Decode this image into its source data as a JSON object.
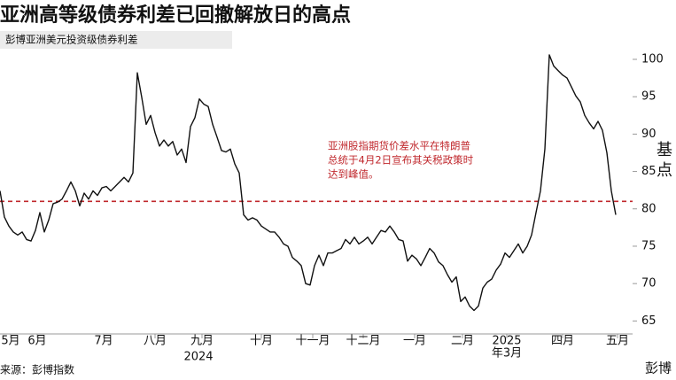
{
  "chart_data": {
    "type": "line",
    "title": "亚洲高等级债券利差已回撤解放日的高点",
    "subtitle": "彭博亚洲美元投资级债券利差",
    "y_axis_label": "基点",
    "source": "来源：彭博指数",
    "brand": "彭博",
    "annotation": [
      "亚洲股指期货价差水平在特朗普",
      "总统于4月2日宣布其关税政策时",
      "达到峰值。"
    ],
    "reference_line": {
      "value": 81,
      "color": "#c0282d"
    },
    "series": [
      {
        "color": "#111111",
        "values": [
          82.4,
          78.9,
          77.7,
          76.9,
          76.5,
          76.9,
          75.9,
          75.7,
          77.1,
          79.5,
          76.9,
          78.5,
          80.7,
          80.9,
          81.3,
          82.4,
          83.6,
          82.4,
          80.4,
          82.1,
          81.3,
          82.4,
          81.8,
          82.8,
          83.0,
          82.4,
          83.0,
          83.6,
          84.2,
          83.6,
          84.8,
          98.2,
          94.9,
          91.3,
          92.5,
          90.2,
          88.4,
          89.2,
          88.4,
          89.0,
          87.2,
          88.0,
          86.2,
          91,
          92.2,
          94.7,
          94.0,
          93.7,
          91.3,
          89.6,
          87.8,
          87.6,
          88.0,
          86.0,
          84.8,
          79.2,
          78.5,
          78.8,
          78.5,
          77.7,
          77.3,
          76.9,
          76.9,
          76.2,
          75.3,
          75.0,
          73.5,
          73.0,
          72.4,
          70.0,
          69.8,
          72.4,
          73.8,
          72.4,
          74.1,
          74.1,
          74.4,
          74.7,
          75.9,
          75.3,
          76.2,
          75.3,
          75.7,
          76.2,
          75.3,
          76.2,
          77.1,
          76.9,
          77.7,
          76.9,
          75.9,
          75.7,
          73.0,
          73.8,
          73.3,
          72.4,
          73.5,
          74.7,
          74.1,
          72.9,
          72.4,
          71.2,
          70.2,
          70.9,
          67.6,
          68.2,
          67.0,
          66.4,
          67.0,
          69.4,
          70.2,
          70.6,
          71.8,
          72.6,
          74.1,
          73.5,
          74.4,
          75.3,
          74.1,
          75.0,
          76.5,
          79.5,
          82.4,
          88,
          100.6,
          99.1,
          98.5,
          97.9,
          97.5,
          96.3,
          95.1,
          94.3,
          92.5,
          91.5,
          90.7,
          91.7,
          90.5,
          87.5,
          82.4,
          79.2
        ]
      }
    ],
    "xlim": [
      0,
      142.8
    ],
    "xticks": [
      {
        "value": 2.4,
        "label": "5月"
      },
      {
        "value": 8.4,
        "label": "6月"
      },
      {
        "value": 23.4,
        "label": "7月"
      },
      {
        "value": 35,
        "label": "八月"
      },
      {
        "value": 45.6,
        "label": "九月"
      },
      {
        "value": 59,
        "label": "十月"
      },
      {
        "value": 70.6,
        "label": "十一月"
      },
      {
        "value": 82,
        "label": "十二月"
      },
      {
        "value": 93.6,
        "label": "一月"
      },
      {
        "value": 104.4,
        "label": "二月"
      },
      {
        "value": 114.4,
        "label": "年3月"
      },
      {
        "value": 127,
        "label": "四月"
      },
      {
        "value": 139.4,
        "label": "五月"
      }
    ],
    "year_labels": [
      {
        "value": 44.8,
        "label": "2024"
      },
      {
        "value": 114.4,
        "label": "2025"
      }
    ],
    "ylim": [
      63.5,
      103.2
    ],
    "yticks": [
      65,
      70,
      75,
      80,
      85,
      90,
      95,
      100
    ]
  }
}
